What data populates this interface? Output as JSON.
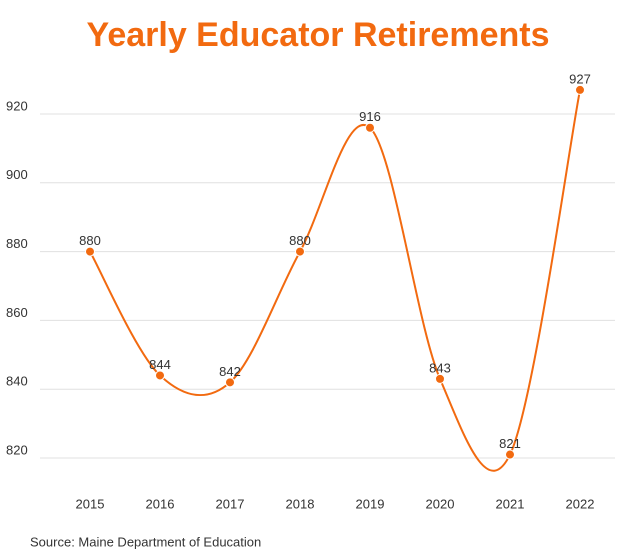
{
  "chart_data": {
    "type": "line",
    "title": "Yearly Educator Retirements",
    "categories": [
      "2015",
      "2016",
      "2017",
      "2018",
      "2019",
      "2020",
      "2021",
      "2022"
    ],
    "values": [
      880,
      844,
      842,
      880,
      916,
      843,
      821,
      927
    ],
    "color": "#f26a10",
    "ylim": [
      820,
      930
    ],
    "yticks": [
      820,
      840,
      860,
      880,
      900,
      920
    ],
    "grid": true,
    "source": "Source: Maine Department of Education"
  }
}
